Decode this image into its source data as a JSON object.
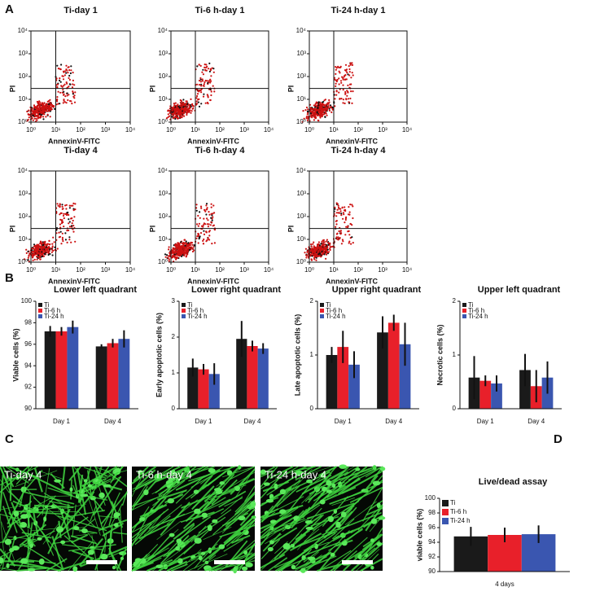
{
  "panel_labels": [
    "A",
    "B",
    "C",
    "D"
  ],
  "images": [
    {
      "label": "Ti-day 4"
    },
    {
      "label": "Ti-6 h-day 4"
    },
    {
      "label": "Ti-24 h-day 4"
    }
  ],
  "chart_data": [
    {
      "type": "scatter",
      "title": "Ti-day 1",
      "xlabel": "AnnexinV-FITC",
      "ylabel": "PI",
      "log": true,
      "color": "#cc1111",
      "xlim": [
        1,
        10000
      ],
      "ylim": [
        1,
        10000
      ],
      "xticks": [
        {
          "value": 1,
          "label": "10⁰"
        },
        {
          "value": 10,
          "label": "10¹"
        },
        {
          "value": 100,
          "label": "10²"
        },
        {
          "value": 1000,
          "label": "10³"
        },
        {
          "value": 10000,
          "label": "10⁴"
        }
      ],
      "yticks": [
        {
          "value": 1,
          "label": "10⁰"
        },
        {
          "value": 10,
          "label": "10¹"
        },
        {
          "value": 100,
          "label": "10²"
        },
        {
          "value": 1000,
          "label": "10³"
        },
        {
          "value": 10000,
          "label": "10⁴"
        }
      ],
      "quadrant_gate": {
        "x": 10,
        "y": 30
      }
    },
    {
      "type": "scatter",
      "title": "Ti-6 h-day 1",
      "xlabel": "AnnexinV-FITC",
      "ylabel": "PI",
      "log": true,
      "color": "#cc1111",
      "xlim": [
        1,
        10000
      ],
      "ylim": [
        1,
        10000
      ],
      "xticks": [
        {
          "value": 1,
          "label": "10⁰"
        },
        {
          "value": 10,
          "label": "10¹"
        },
        {
          "value": 100,
          "label": "10²"
        },
        {
          "value": 1000,
          "label": "10³"
        },
        {
          "value": 10000,
          "label": "10⁴"
        }
      ],
      "yticks": [
        {
          "value": 1,
          "label": "10⁰"
        },
        {
          "value": 10,
          "label": "10¹"
        },
        {
          "value": 100,
          "label": "10²"
        },
        {
          "value": 1000,
          "label": "10³"
        },
        {
          "value": 10000,
          "label": "10⁴"
        }
      ],
      "quadrant_gate": {
        "x": 10,
        "y": 30
      }
    },
    {
      "type": "scatter",
      "title": "Ti-24 h-day 1",
      "xlabel": "AnnexinV-FITC",
      "ylabel": "PI",
      "log": true,
      "color": "#cc1111",
      "xlim": [
        1,
        10000
      ],
      "ylim": [
        1,
        10000
      ],
      "xticks": [
        {
          "value": 1,
          "label": "10⁰"
        },
        {
          "value": 10,
          "label": "10¹"
        },
        {
          "value": 100,
          "label": "10²"
        },
        {
          "value": 1000,
          "label": "10³"
        },
        {
          "value": 10000,
          "label": "10⁴"
        }
      ],
      "yticks": [
        {
          "value": 1,
          "label": "10⁰"
        },
        {
          "value": 10,
          "label": "10¹"
        },
        {
          "value": 100,
          "label": "10²"
        },
        {
          "value": 1000,
          "label": "10³"
        },
        {
          "value": 10000,
          "label": "10⁴"
        }
      ],
      "quadrant_gate": {
        "x": 10,
        "y": 30
      }
    },
    {
      "type": "scatter",
      "title": "Ti-day 4",
      "xlabel": "AnnexinV-FITC",
      "ylabel": "PI",
      "log": true,
      "color": "#cc1111",
      "xlim": [
        1,
        10000
      ],
      "ylim": [
        1,
        10000
      ],
      "xticks": [
        {
          "value": 1,
          "label": "10⁰"
        },
        {
          "value": 10,
          "label": "10¹"
        },
        {
          "value": 100,
          "label": "10²"
        },
        {
          "value": 1000,
          "label": "10³"
        },
        {
          "value": 10000,
          "label": "10⁴"
        }
      ],
      "yticks": [
        {
          "value": 1,
          "label": "10⁰"
        },
        {
          "value": 10,
          "label": "10¹"
        },
        {
          "value": 100,
          "label": "10²"
        },
        {
          "value": 1000,
          "label": "10³"
        },
        {
          "value": 10000,
          "label": "10⁴"
        }
      ],
      "quadrant_gate": {
        "x": 10,
        "y": 30
      }
    },
    {
      "type": "scatter",
      "title": "Ti-6 h-day 4",
      "xlabel": "AnnexinV-FITC",
      "ylabel": "PI",
      "log": true,
      "color": "#cc1111",
      "xlim": [
        1,
        10000
      ],
      "ylim": [
        1,
        10000
      ],
      "xticks": [
        {
          "value": 1,
          "label": "10⁰"
        },
        {
          "value": 10,
          "label": "10¹"
        },
        {
          "value": 100,
          "label": "10²"
        },
        {
          "value": 1000,
          "label": "10³"
        },
        {
          "value": 10000,
          "label": "10⁴"
        }
      ],
      "yticks": [
        {
          "value": 1,
          "label": "10⁰"
        },
        {
          "value": 10,
          "label": "10¹"
        },
        {
          "value": 100,
          "label": "10²"
        },
        {
          "value": 1000,
          "label": "10³"
        },
        {
          "value": 10000,
          "label": "10⁴"
        }
      ],
      "quadrant_gate": {
        "x": 10,
        "y": 30
      }
    },
    {
      "type": "scatter",
      "title": "Ti-24 h-day 4",
      "xlabel": "AnnexinV-FITC",
      "ylabel": "PI",
      "log": true,
      "color": "#cc1111",
      "xlim": [
        1,
        10000
      ],
      "ylim": [
        1,
        10000
      ],
      "xticks": [
        {
          "value": 1,
          "label": "10⁰"
        },
        {
          "value": 10,
          "label": "10¹"
        },
        {
          "value": 100,
          "label": "10²"
        },
        {
          "value": 1000,
          "label": "10³"
        },
        {
          "value": 10000,
          "label": "10⁴"
        }
      ],
      "yticks": [
        {
          "value": 1,
          "label": "10⁰"
        },
        {
          "value": 10,
          "label": "10¹"
        },
        {
          "value": 100,
          "label": "10²"
        },
        {
          "value": 1000,
          "label": "10³"
        },
        {
          "value": 10000,
          "label": "10⁴"
        }
      ],
      "quadrant_gate": {
        "x": 10,
        "y": 30
      }
    },
    {
      "type": "bar",
      "title": "Lower left quadrant",
      "ylabel": "Viable cells (%)",
      "categories": [
        "Day 1",
        "Day 4"
      ],
      "ylim": [
        90,
        100
      ],
      "yticks": [
        90,
        92,
        94,
        96,
        98,
        100
      ],
      "legend": "top-left",
      "series": [
        {
          "name": "Ti",
          "color": "#1a1a1a",
          "values": [
            97.2,
            95.8
          ],
          "errors": [
            0.5,
            0.2
          ]
        },
        {
          "name": "Ti-6 h",
          "color": "#e8202a",
          "values": [
            97.2,
            96.1
          ],
          "errors": [
            0.4,
            0.4
          ]
        },
        {
          "name": "Ti-24 h",
          "color": "#3a56b0",
          "values": [
            97.6,
            96.5
          ],
          "errors": [
            0.6,
            0.8
          ]
        }
      ]
    },
    {
      "type": "bar",
      "title": "Lower right quadrant",
      "ylabel": "Early apoptotic cells (%)",
      "categories": [
        "Day 1",
        "Day 4"
      ],
      "ylim": [
        0,
        3
      ],
      "yticks": [
        0,
        1,
        2,
        3
      ],
      "legend": "top-left",
      "series": [
        {
          "name": "Ti",
          "color": "#1a1a1a",
          "values": [
            1.15,
            1.95
          ],
          "errors": [
            0.25,
            0.5
          ]
        },
        {
          "name": "Ti-6 h",
          "color": "#e8202a",
          "values": [
            1.1,
            1.75
          ],
          "errors": [
            0.15,
            0.15
          ]
        },
        {
          "name": "Ti-24 h",
          "color": "#3a56b0",
          "values": [
            0.97,
            1.68
          ],
          "errors": [
            0.3,
            0.15
          ]
        }
      ]
    },
    {
      "type": "bar",
      "title": "Upper right quadrant",
      "ylabel": "Late apoptotic cells (%)",
      "categories": [
        "Day 1",
        "Day 4"
      ],
      "ylim": [
        0,
        2
      ],
      "yticks": [
        0,
        1,
        2
      ],
      "legend": "top-left",
      "series": [
        {
          "name": "Ti",
          "color": "#1a1a1a",
          "values": [
            1.0,
            1.42
          ],
          "errors": [
            0.15,
            0.3
          ]
        },
        {
          "name": "Ti-6 h",
          "color": "#e8202a",
          "values": [
            1.15,
            1.6
          ],
          "errors": [
            0.3,
            0.15
          ]
        },
        {
          "name": "Ti-24 h",
          "color": "#3a56b0",
          "values": [
            0.82,
            1.2
          ],
          "errors": [
            0.25,
            0.4
          ]
        }
      ]
    },
    {
      "type": "bar",
      "title": "Upper left quadrant",
      "ylabel": "Necrotic cells (%)",
      "categories": [
        "Day 1",
        "Day 4"
      ],
      "ylim": [
        0,
        2
      ],
      "yticks": [
        0,
        1,
        2
      ],
      "legend": "top-left",
      "series": [
        {
          "name": "Ti",
          "color": "#1a1a1a",
          "values": [
            0.58,
            0.72
          ],
          "errors": [
            0.4,
            0.3
          ]
        },
        {
          "name": "Ti-6 h",
          "color": "#e8202a",
          "values": [
            0.52,
            0.42
          ],
          "errors": [
            0.1,
            0.3
          ]
        },
        {
          "name": "Ti-24 h",
          "color": "#3a56b0",
          "values": [
            0.47,
            0.58
          ],
          "errors": [
            0.15,
            0.3
          ]
        }
      ]
    },
    {
      "type": "bar",
      "title": "Live/dead assay",
      "ylabel": "viable cells (%)",
      "categories": [
        "4 days"
      ],
      "ylim": [
        90,
        100
      ],
      "yticks": [
        90,
        92,
        94,
        96,
        98,
        100
      ],
      "legend": "top-left",
      "series": [
        {
          "name": "Ti",
          "color": "#1a1a1a",
          "values": [
            94.8
          ],
          "errors": [
            1.3
          ]
        },
        {
          "name": "Ti-6 h",
          "color": "#e8202a",
          "values": [
            95.0
          ],
          "errors": [
            1.0
          ]
        },
        {
          "name": "Ti-24 h",
          "color": "#3a56b0",
          "values": [
            95.1
          ],
          "errors": [
            1.2
          ]
        }
      ]
    }
  ]
}
